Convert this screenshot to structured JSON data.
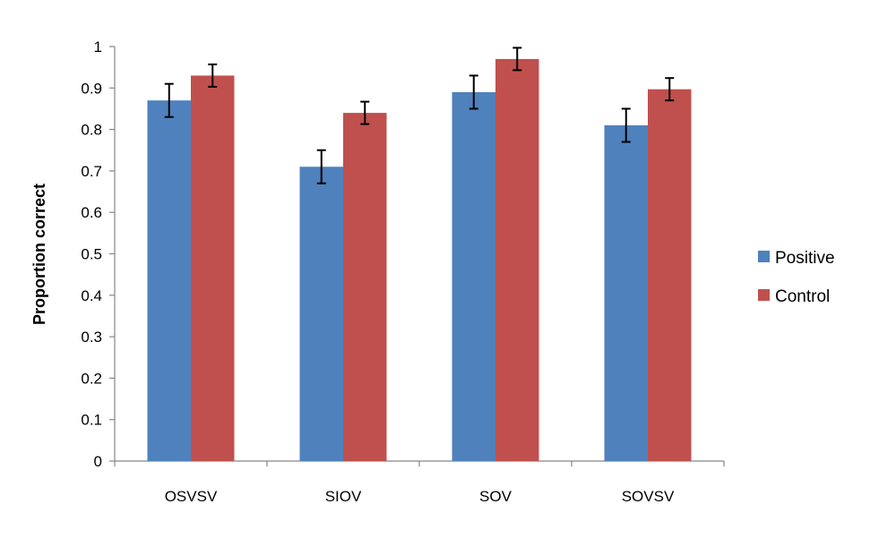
{
  "chart_data": {
    "type": "bar",
    "title": "",
    "xlabel": "",
    "ylabel": "Proportion correct",
    "ylim": [
      0,
      1
    ],
    "yticks": [
      0,
      0.1,
      0.2,
      0.3,
      0.4,
      0.5,
      0.6,
      0.7,
      0.8,
      0.9,
      1
    ],
    "ytick_labels": [
      "0",
      "0.1",
      "0.2",
      "0.3",
      "0.4",
      "0.5",
      "0.6",
      "0.7",
      "0.8",
      "0.9",
      "1"
    ],
    "categories": [
      "OSVSV",
      "SIOV",
      "SOV",
      "SOVSV"
    ],
    "series": [
      {
        "name": "Positive",
        "color": "#4F81BD",
        "values": [
          0.87,
          0.71,
          0.89,
          0.81
        ],
        "error": [
          0.04,
          0.04,
          0.04,
          0.04
        ]
      },
      {
        "name": "Control",
        "color": "#C0504D",
        "values": [
          0.93,
          0.84,
          0.97,
          0.897
        ],
        "error": [
          0.027,
          0.027,
          0.027,
          0.027
        ]
      }
    ],
    "grid": false,
    "legend": "right",
    "error_bars": true
  }
}
